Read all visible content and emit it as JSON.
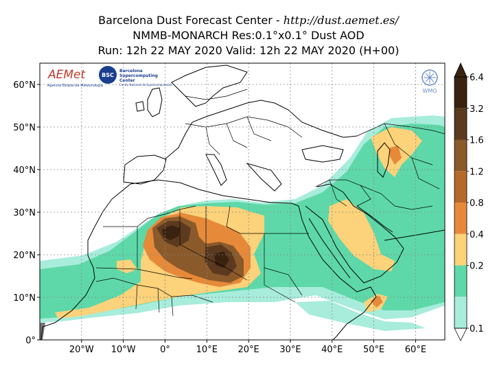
{
  "header": {
    "line1_prefix": "Barcelona Dust Forecast Center - ",
    "line1_url": "http://dust.aemet.es/",
    "line2": "NMMB-MONARCH   Res:0.1°x0.1°   Dust AOD",
    "line3": "Run: 12h 22 MAY 2020   Valid: 12h 22 MAY 2020 (H+00)"
  },
  "map": {
    "lat_labels": [
      "60°N",
      "50°N",
      "40°N",
      "30°N",
      "20°N",
      "10°N",
      "0°"
    ],
    "lon_labels": [
      "20°W",
      "10°W",
      "0°",
      "10°E",
      "20°E",
      "30°E",
      "40°E",
      "50°E",
      "60°E"
    ],
    "lon_values": [
      -20,
      -10,
      0,
      10,
      20,
      30,
      40,
      50,
      60
    ],
    "lat_values": [
      60,
      50,
      40,
      30,
      20,
      10,
      0
    ],
    "extent": {
      "lon_min": -30,
      "lon_max": 67,
      "lat_min": 0,
      "lat_max": 65
    },
    "grid": true,
    "logos": {
      "aemet": "AEMet",
      "aemet_sub": "Agencia Estatal de Meteorología",
      "bsc_badge": "BSC",
      "bsc_name_1": "Barcelona",
      "bsc_name_2": "Supercomputing",
      "bsc_name_3": "Center",
      "bsc_sub": "Centro Nacional de Supercomputación",
      "wmo": "WMO"
    }
  },
  "colorbar": {
    "labels": [
      "6.4",
      "3.2",
      "1.6",
      "1.2",
      "0.8",
      "0.4",
      "0.2",
      "0.1"
    ],
    "colors": [
      "#3a2211",
      "#5b3a1f",
      "#8b5a2b",
      "#b56a2c",
      "#e68a3a",
      "#fcd27a",
      "#5ed8a8",
      "#a8ecdc"
    ]
  }
}
